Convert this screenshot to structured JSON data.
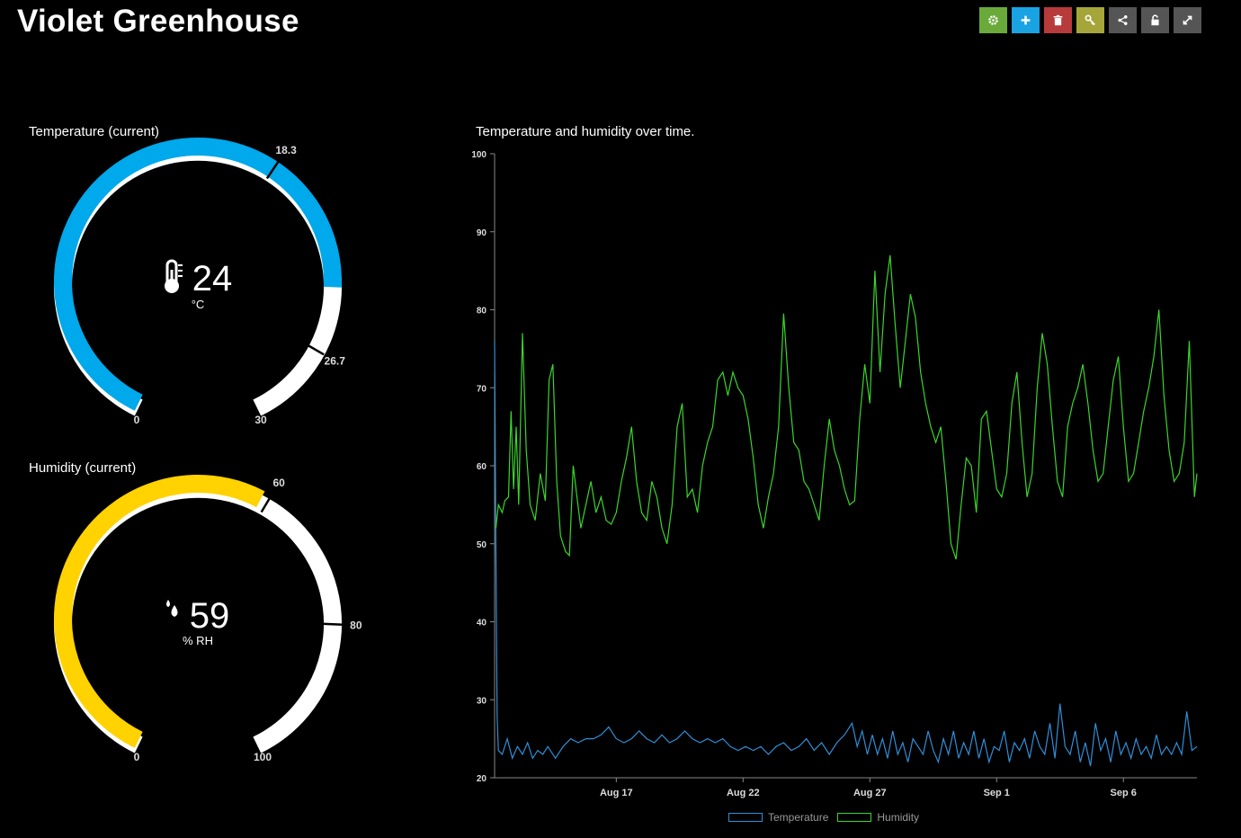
{
  "page": {
    "title": "Violet Greenhouse"
  },
  "toolbar": {
    "buttons": [
      {
        "name": "settings",
        "icon": "gear-icon",
        "color": "#6aaa3b"
      },
      {
        "name": "add",
        "icon": "plus-icon",
        "color": "#1aa3e3"
      },
      {
        "name": "delete",
        "icon": "trash-icon",
        "color": "#b83b3b"
      },
      {
        "name": "key",
        "icon": "key-icon",
        "color": "#a6a53a"
      },
      {
        "name": "share",
        "icon": "share-icon",
        "color": "#555555"
      },
      {
        "name": "lock",
        "icon": "unlock-icon",
        "color": "#555555"
      },
      {
        "name": "fullscreen",
        "icon": "expand-icon",
        "color": "#555555"
      }
    ]
  },
  "temperature_gauge": {
    "label": "Temperature (current)",
    "value": 24,
    "value_text": "24",
    "unit": "°C",
    "min": 0,
    "max": 30,
    "min_text": "0",
    "max_text": "30",
    "thresholds": [
      18.3,
      26.7
    ],
    "threshold_texts": [
      "18.3",
      "26.7"
    ],
    "color": "#00a8ec",
    "track_color": "#ffffff",
    "icon": "thermometer-icon"
  },
  "humidity_gauge": {
    "label": "Humidity (current)",
    "value": 59,
    "value_text": "59",
    "unit": "% RH",
    "min": 0,
    "max": 100,
    "min_text": "0",
    "max_text": "100",
    "thresholds": [
      60,
      80
    ],
    "threshold_texts": [
      "60",
      "80"
    ],
    "color": "#ffd200",
    "track_color": "#ffffff",
    "icon": "droplets-icon"
  },
  "chart": {
    "label": "Temperature and humidity over time."
  },
  "chart_data": {
    "type": "line",
    "title": "Temperature and humidity over time.",
    "xlabel": "",
    "ylabel": "",
    "ylim": [
      20,
      100
    ],
    "yticks": [
      20,
      30,
      40,
      50,
      60,
      70,
      80,
      90,
      100
    ],
    "xlim": [
      12.2,
      39.9
    ],
    "xticks": [
      {
        "value": 17,
        "label": "Aug 17"
      },
      {
        "value": 22,
        "label": "Aug 22"
      },
      {
        "value": 27,
        "label": "Aug 27"
      },
      {
        "value": 32,
        "label": "Sep 1"
      },
      {
        "value": 37,
        "label": "Sep 6"
      }
    ],
    "legend": "bottom-center",
    "series": [
      {
        "name": "Temperature",
        "color": "#2f8fd8",
        "points": [
          [
            12.2,
            76
          ],
          [
            12.25,
            50
          ],
          [
            12.3,
            28
          ],
          [
            12.35,
            23.5
          ],
          [
            12.5,
            23
          ],
          [
            12.7,
            25
          ],
          [
            12.9,
            22.5
          ],
          [
            13.1,
            24
          ],
          [
            13.3,
            23
          ],
          [
            13.5,
            24.5
          ],
          [
            13.7,
            22.5
          ],
          [
            13.9,
            23.5
          ],
          [
            14.1,
            23
          ],
          [
            14.3,
            24
          ],
          [
            14.6,
            22.5
          ],
          [
            14.9,
            24
          ],
          [
            15.2,
            25
          ],
          [
            15.5,
            24.5
          ],
          [
            15.8,
            25
          ],
          [
            16.1,
            25
          ],
          [
            16.4,
            25.5
          ],
          [
            16.7,
            26.5
          ],
          [
            17.0,
            25
          ],
          [
            17.3,
            24.5
          ],
          [
            17.6,
            25
          ],
          [
            17.9,
            26
          ],
          [
            18.2,
            25
          ],
          [
            18.5,
            24.5
          ],
          [
            18.8,
            25.5
          ],
          [
            19.1,
            24.5
          ],
          [
            19.4,
            25
          ],
          [
            19.7,
            26
          ],
          [
            20.0,
            25
          ],
          [
            20.3,
            24.5
          ],
          [
            20.6,
            25
          ],
          [
            20.9,
            24.5
          ],
          [
            21.2,
            25
          ],
          [
            21.5,
            24
          ],
          [
            21.8,
            23.5
          ],
          [
            22.1,
            24
          ],
          [
            22.4,
            23.5
          ],
          [
            22.7,
            24
          ],
          [
            23.0,
            23
          ],
          [
            23.3,
            24
          ],
          [
            23.6,
            24.5
          ],
          [
            23.9,
            23.5
          ],
          [
            24.2,
            24
          ],
          [
            24.5,
            25
          ],
          [
            24.8,
            23.5
          ],
          [
            25.1,
            24.5
          ],
          [
            25.4,
            23
          ],
          [
            25.7,
            24.5
          ],
          [
            26.0,
            25.5
          ],
          [
            26.3,
            27
          ],
          [
            26.5,
            24
          ],
          [
            26.7,
            26
          ],
          [
            26.9,
            23
          ],
          [
            27.1,
            25.5
          ],
          [
            27.3,
            23
          ],
          [
            27.5,
            25
          ],
          [
            27.7,
            22.5
          ],
          [
            27.9,
            26
          ],
          [
            28.1,
            23
          ],
          [
            28.3,
            24.5
          ],
          [
            28.5,
            22
          ],
          [
            28.7,
            25
          ],
          [
            28.9,
            24
          ],
          [
            29.1,
            23
          ],
          [
            29.3,
            26
          ],
          [
            29.5,
            23.5
          ],
          [
            29.7,
            22
          ],
          [
            29.9,
            25
          ],
          [
            30.1,
            23
          ],
          [
            30.3,
            26
          ],
          [
            30.5,
            22.5
          ],
          [
            30.7,
            24.5
          ],
          [
            30.9,
            23
          ],
          [
            31.1,
            26
          ],
          [
            31.3,
            22.5
          ],
          [
            31.5,
            25
          ],
          [
            31.7,
            22
          ],
          [
            31.9,
            24
          ],
          [
            32.1,
            23.5
          ],
          [
            32.3,
            26
          ],
          [
            32.5,
            22
          ],
          [
            32.7,
            24.5
          ],
          [
            32.9,
            23.5
          ],
          [
            33.1,
            25
          ],
          [
            33.3,
            22.5
          ],
          [
            33.5,
            26
          ],
          [
            33.7,
            24
          ],
          [
            33.9,
            23
          ],
          [
            34.1,
            27
          ],
          [
            34.3,
            22.5
          ],
          [
            34.5,
            29.5
          ],
          [
            34.7,
            24
          ],
          [
            34.9,
            23
          ],
          [
            35.1,
            26
          ],
          [
            35.3,
            22
          ],
          [
            35.5,
            24.5
          ],
          [
            35.7,
            21.5
          ],
          [
            35.9,
            27
          ],
          [
            36.1,
            23.5
          ],
          [
            36.3,
            25
          ],
          [
            36.5,
            22
          ],
          [
            36.7,
            26
          ],
          [
            36.9,
            23
          ],
          [
            37.1,
            24.5
          ],
          [
            37.3,
            22.5
          ],
          [
            37.5,
            25
          ],
          [
            37.7,
            23
          ],
          [
            37.9,
            24
          ],
          [
            38.1,
            22.5
          ],
          [
            38.3,
            25.5
          ],
          [
            38.5,
            23
          ],
          [
            38.7,
            24
          ],
          [
            38.9,
            23
          ],
          [
            39.1,
            24.5
          ],
          [
            39.3,
            23
          ],
          [
            39.5,
            28.5
          ],
          [
            39.7,
            23.5
          ],
          [
            39.9,
            24
          ]
        ]
      },
      {
        "name": "Humidity",
        "color": "#3ad62a",
        "points": [
          [
            12.25,
            52
          ],
          [
            12.35,
            55
          ],
          [
            12.5,
            54
          ],
          [
            12.6,
            55.5
          ],
          [
            12.75,
            56
          ],
          [
            12.85,
            67
          ],
          [
            12.95,
            57
          ],
          [
            13.05,
            65
          ],
          [
            13.15,
            55
          ],
          [
            13.3,
            77
          ],
          [
            13.45,
            62
          ],
          [
            13.6,
            55
          ],
          [
            13.8,
            53
          ],
          [
            14.0,
            59
          ],
          [
            14.2,
            55.5
          ],
          [
            14.35,
            71
          ],
          [
            14.5,
            73
          ],
          [
            14.65,
            58
          ],
          [
            14.8,
            51
          ],
          [
            15.0,
            49
          ],
          [
            15.15,
            48.5
          ],
          [
            15.3,
            60
          ],
          [
            15.45,
            56
          ],
          [
            15.6,
            52
          ],
          [
            15.8,
            55
          ],
          [
            16.0,
            58
          ],
          [
            16.2,
            54
          ],
          [
            16.4,
            56
          ],
          [
            16.6,
            53
          ],
          [
            16.8,
            52.5
          ],
          [
            17.0,
            54
          ],
          [
            17.2,
            58
          ],
          [
            17.4,
            61
          ],
          [
            17.6,
            65
          ],
          [
            17.8,
            58
          ],
          [
            18.0,
            54
          ],
          [
            18.2,
            53
          ],
          [
            18.4,
            58
          ],
          [
            18.6,
            56
          ],
          [
            18.8,
            52
          ],
          [
            19.0,
            50
          ],
          [
            19.2,
            55
          ],
          [
            19.4,
            65
          ],
          [
            19.6,
            68
          ],
          [
            19.8,
            56
          ],
          [
            20.0,
            57
          ],
          [
            20.2,
            54
          ],
          [
            20.4,
            60
          ],
          [
            20.6,
            63
          ],
          [
            20.8,
            65
          ],
          [
            21.0,
            71
          ],
          [
            21.2,
            72
          ],
          [
            21.4,
            69
          ],
          [
            21.6,
            72
          ],
          [
            21.8,
            70
          ],
          [
            22.0,
            69
          ],
          [
            22.2,
            66
          ],
          [
            22.4,
            61
          ],
          [
            22.6,
            55
          ],
          [
            22.8,
            52
          ],
          [
            23.0,
            56
          ],
          [
            23.2,
            59
          ],
          [
            23.4,
            65
          ],
          [
            23.6,
            79.5
          ],
          [
            23.8,
            70
          ],
          [
            24.0,
            63
          ],
          [
            24.2,
            62
          ],
          [
            24.4,
            58
          ],
          [
            24.6,
            57
          ],
          [
            24.8,
            55
          ],
          [
            25.0,
            53
          ],
          [
            25.2,
            60
          ],
          [
            25.4,
            66
          ],
          [
            25.6,
            62
          ],
          [
            25.8,
            60
          ],
          [
            26.0,
            57
          ],
          [
            26.2,
            55
          ],
          [
            26.4,
            55.5
          ],
          [
            26.6,
            66
          ],
          [
            26.8,
            73
          ],
          [
            27.0,
            68
          ],
          [
            27.2,
            85
          ],
          [
            27.4,
            72
          ],
          [
            27.6,
            82
          ],
          [
            27.8,
            87
          ],
          [
            28.0,
            78
          ],
          [
            28.2,
            70
          ],
          [
            28.4,
            76
          ],
          [
            28.6,
            82
          ],
          [
            28.8,
            79
          ],
          [
            29.0,
            72
          ],
          [
            29.2,
            68
          ],
          [
            29.4,
            65
          ],
          [
            29.6,
            63
          ],
          [
            29.8,
            65
          ],
          [
            30.0,
            58
          ],
          [
            30.2,
            50
          ],
          [
            30.4,
            48
          ],
          [
            30.6,
            55
          ],
          [
            30.8,
            61
          ],
          [
            31.0,
            60
          ],
          [
            31.2,
            54
          ],
          [
            31.4,
            66
          ],
          [
            31.6,
            67
          ],
          [
            31.8,
            62
          ],
          [
            32.0,
            57
          ],
          [
            32.2,
            56
          ],
          [
            32.4,
            59
          ],
          [
            32.6,
            68
          ],
          [
            32.8,
            72
          ],
          [
            33.0,
            63
          ],
          [
            33.2,
            56
          ],
          [
            33.4,
            59
          ],
          [
            33.6,
            70
          ],
          [
            33.8,
            77
          ],
          [
            34.0,
            73
          ],
          [
            34.2,
            65
          ],
          [
            34.4,
            58
          ],
          [
            34.6,
            56
          ],
          [
            34.8,
            65
          ],
          [
            35.0,
            68
          ],
          [
            35.2,
            70
          ],
          [
            35.4,
            73
          ],
          [
            35.6,
            68
          ],
          [
            35.8,
            62
          ],
          [
            36.0,
            58
          ],
          [
            36.2,
            59
          ],
          [
            36.4,
            65
          ],
          [
            36.6,
            71
          ],
          [
            36.8,
            74
          ],
          [
            37.0,
            65
          ],
          [
            37.2,
            58
          ],
          [
            37.4,
            59
          ],
          [
            37.6,
            63
          ],
          [
            37.8,
            67
          ],
          [
            38.0,
            70
          ],
          [
            38.2,
            74
          ],
          [
            38.4,
            80
          ],
          [
            38.6,
            69
          ],
          [
            38.8,
            62
          ],
          [
            39.0,
            58
          ],
          [
            39.2,
            59
          ],
          [
            39.4,
            63
          ],
          [
            39.6,
            76
          ],
          [
            39.8,
            56
          ],
          [
            39.9,
            59
          ]
        ]
      }
    ]
  }
}
